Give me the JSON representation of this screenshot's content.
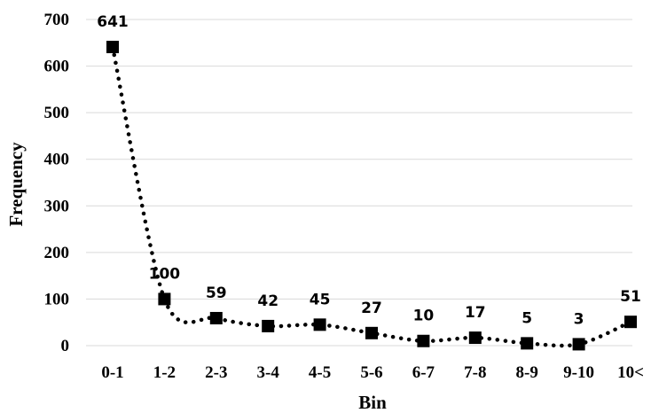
{
  "chart_data": {
    "type": "line",
    "title": "",
    "xlabel": "Bin",
    "ylabel": "Frequency",
    "categories": [
      "0-1",
      "1-2",
      "2-3",
      "3-4",
      "4-5",
      "5-6",
      "6-7",
      "7-8",
      "8-9",
      "9-10",
      "10<"
    ],
    "values": [
      641,
      100,
      59,
      42,
      45,
      27,
      10,
      17,
      5,
      3,
      51
    ],
    "data_labels": [
      "641",
      "100",
      "59",
      "42",
      "45",
      "27",
      "10",
      "17",
      "5",
      "3",
      "51"
    ],
    "ylim": [
      0,
      700
    ],
    "yticks": [
      0,
      100,
      200,
      300,
      400,
      500,
      600,
      700
    ],
    "ytick_labels": [
      "0",
      "100",
      "200",
      "300",
      "400",
      "500",
      "600",
      "700"
    ],
    "grid": "horizontal",
    "legend": "none",
    "line_style": "dotted smooth",
    "marker": "square",
    "series_color": "#000000",
    "grid_color": "#d9d9d9"
  }
}
